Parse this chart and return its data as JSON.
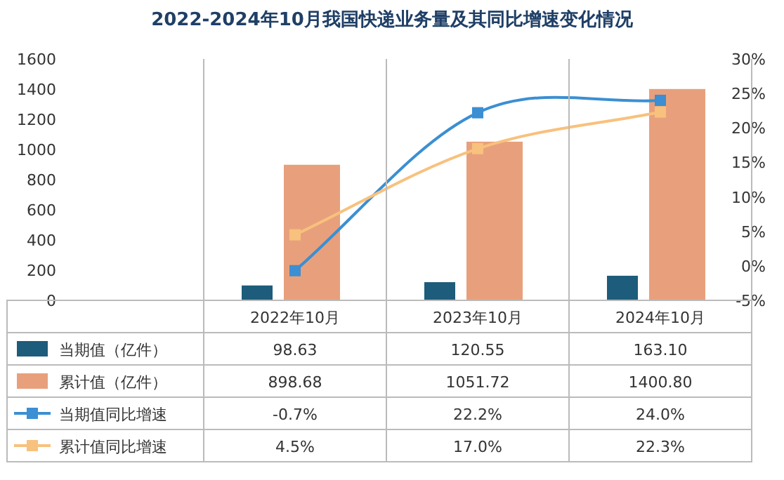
{
  "chart_data": {
    "type": "bar",
    "title": "2022-2024年10月我国快递业务量及其同比增速变化情况",
    "categories": [
      "2022年10月",
      "2023年10月",
      "2024年10月"
    ],
    "series": [
      {
        "name": "当期值（亿件）",
        "color": "#1d5c7a",
        "values": [
          98.63,
          120.55,
          163.1
        ],
        "value_labels": [
          "98.63",
          "120.55",
          "163.10"
        ]
      },
      {
        "name": "累计值（亿件）",
        "color": "#e8a07c",
        "values": [
          898.68,
          1051.72,
          1400.8
        ],
        "value_labels": [
          "898.68",
          "1051.72",
          "1400.80"
        ]
      },
      {
        "name": "当期值同比增速",
        "type": "line",
        "axis": "y2",
        "color": "#3b8fd2",
        "values": [
          -0.7,
          22.2,
          24.0
        ],
        "value_labels": [
          "-0.7%",
          "22.2%",
          "24.0%"
        ]
      },
      {
        "name": "累计值同比增速",
        "type": "line",
        "axis": "y2",
        "color": "#f8c17d",
        "values": [
          4.5,
          17.0,
          22.3
        ],
        "value_labels": [
          "4.5%",
          "17.0%",
          "22.3%"
        ]
      }
    ],
    "ylim": [
      0,
      1600
    ],
    "yticks": [
      0,
      200,
      400,
      600,
      800,
      1000,
      1200,
      1400,
      1600
    ],
    "y2lim": [
      -5,
      30
    ],
    "y2ticks": [
      {
        "value": -5,
        "label": "-5%"
      },
      {
        "value": 0,
        "label": "0%"
      },
      {
        "value": 5,
        "label": "5%"
      },
      {
        "value": 10,
        "label": "10%"
      },
      {
        "value": 15,
        "label": "15%"
      },
      {
        "value": 20,
        "label": "20%"
      },
      {
        "value": 25,
        "label": "25%"
      },
      {
        "value": 30,
        "label": "30%"
      }
    ],
    "legend": "bottom",
    "marker": "square",
    "line_style": "solid"
  }
}
